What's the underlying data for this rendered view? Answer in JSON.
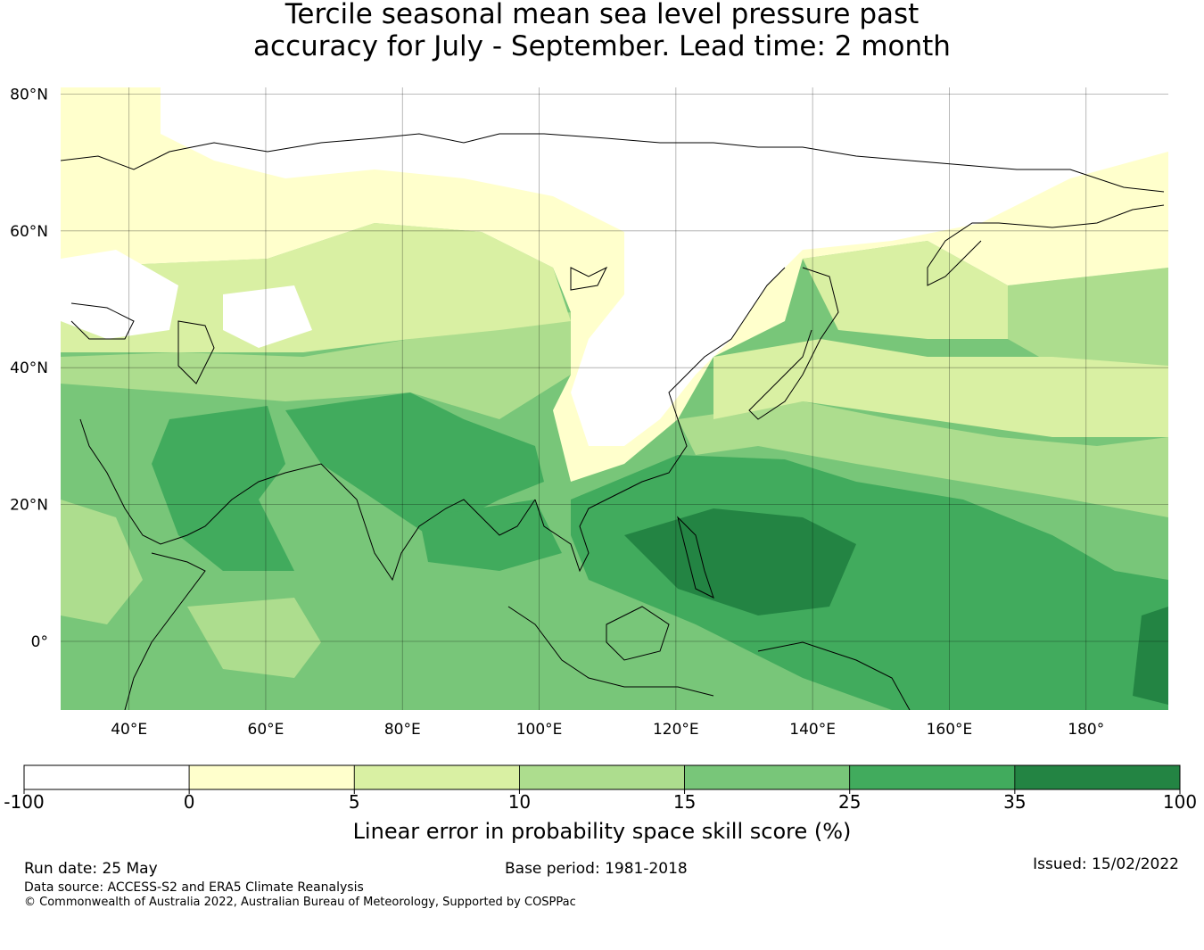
{
  "title": {
    "line1": "Tercile seasonal mean sea level pressure past",
    "line2": "accuracy for July - September. Lead time: 2 month"
  },
  "map": {
    "lat_labels": [
      "80°N",
      "60°N",
      "40°N",
      "20°N",
      "0°"
    ],
    "lon_labels": [
      "40°E",
      "60°E",
      "80°E",
      "100°E",
      "120°E",
      "140°E",
      "160°E",
      "180°"
    ],
    "lat_values": [
      80,
      60,
      40,
      20,
      0
    ],
    "lon_values": [
      40,
      60,
      80,
      100,
      120,
      140,
      160,
      180
    ],
    "extent": {
      "lon_min": 30,
      "lon_max": 192,
      "lat_min": -10,
      "lat_max": 81
    }
  },
  "colorbar": {
    "label": "Linear error in probability space skill score (%)",
    "ticks": [
      "-100",
      "0",
      "5",
      "10",
      "15",
      "25",
      "35",
      "100"
    ],
    "colors": [
      "#ffffff",
      "#ffffcc",
      "#d9f0a3",
      "#addd8e",
      "#78c679",
      "#41ab5d",
      "#238443"
    ]
  },
  "footer": {
    "run_date": "Run date: 25 May",
    "base_period": "Base period: 1981-2018",
    "issued": "Issued: 15/02/2022",
    "data_source": "Data source: ACCESS-S2 and ERA5 Climate Reanalysis",
    "copyright": "© Commonwealth of Australia 2022, Australian Bureau of Meteorology, Supported by COSPPac"
  }
}
